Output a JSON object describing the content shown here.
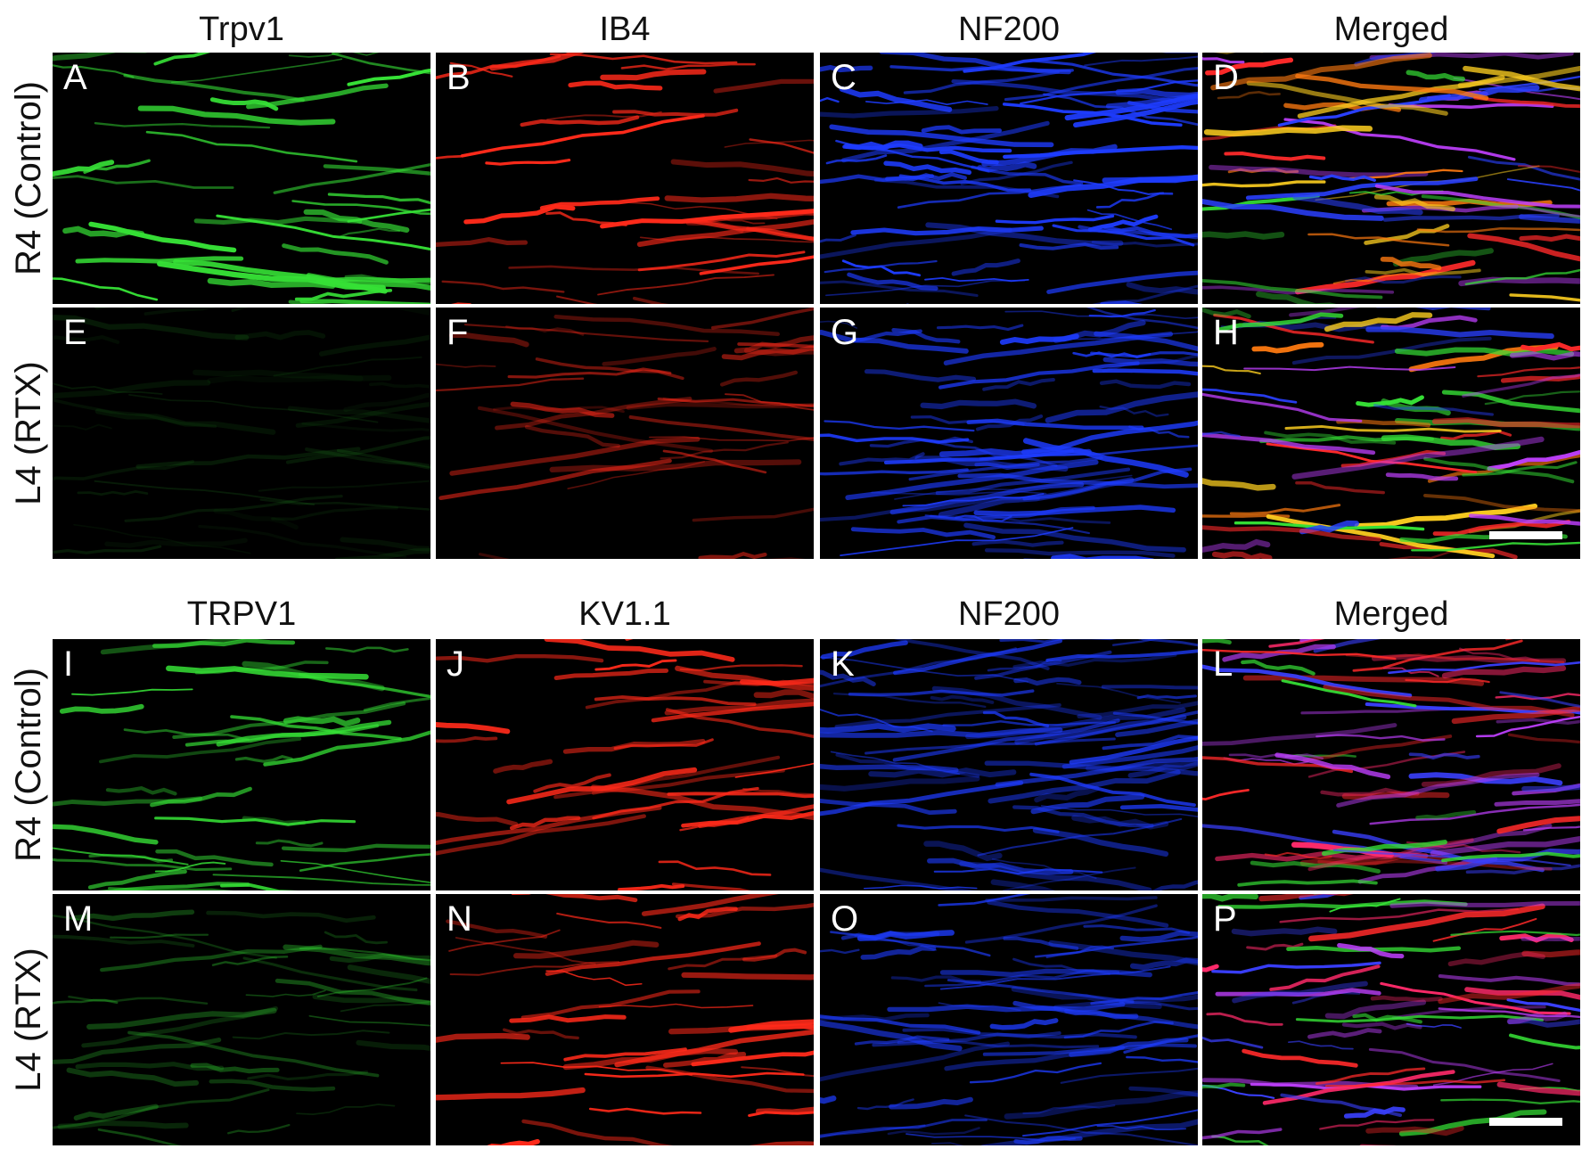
{
  "figures": [
    {
      "column_titles": [
        "Trpv1",
        "IB4",
        "NF200",
        "Merged"
      ],
      "rows": [
        {
          "label": "R4 (Control)",
          "panels": [
            "A",
            "B",
            "C",
            "D"
          ]
        },
        {
          "label": "L4 (RTX)",
          "panels": [
            "E",
            "F",
            "G",
            "H"
          ]
        }
      ]
    },
    {
      "column_titles": [
        "TRPV1",
        "KV1.1",
        "NF200",
        "Merged"
      ],
      "rows": [
        {
          "label": "R4 (Control)",
          "panels": [
            "I",
            "J",
            "K",
            "L"
          ]
        },
        {
          "label": "L4 (RTX)",
          "panels": [
            "M",
            "N",
            "O",
            "P"
          ]
        }
      ]
    }
  ]
}
